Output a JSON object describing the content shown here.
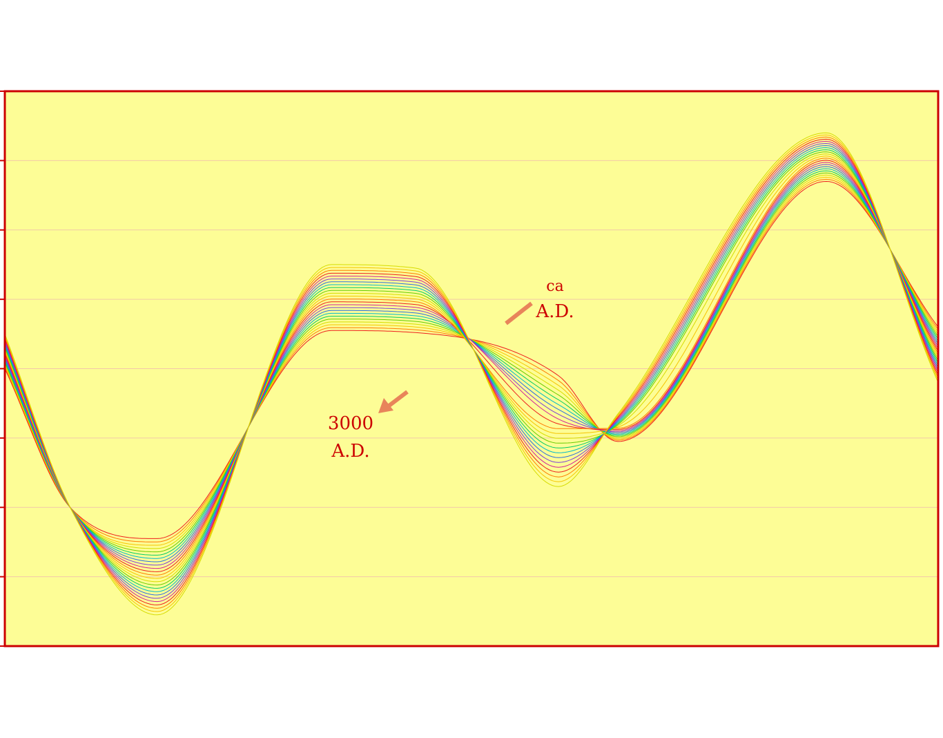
{
  "chart_data": {
    "type": "line",
    "title": "",
    "xlabel": "",
    "ylabel": "",
    "xlim": [
      0,
      1
    ],
    "ylim": [
      0,
      8
    ],
    "grid": "horizontal",
    "y_ticks": [
      0,
      1,
      2,
      3,
      4,
      5,
      6,
      7,
      8
    ],
    "background_color": "#fdfd96",
    "frame_color": "#cc0000",
    "grid_color": "#f2c8a8",
    "arrow_color": "#e8845a",
    "series_count": 24,
    "series_palette": [
      "#ee1c1c",
      "#ff7a00",
      "#f5c400",
      "#d6dc00",
      "#66cc00",
      "#00cc66",
      "#00b8cc",
      "#2a6ee0",
      "#7a3fd8",
      "#d21f9a"
    ],
    "series_note": "24 curves from '3000 A.D.' (innermost) to 'ca A.D.' (outermost)",
    "x": [
      0,
      0.07,
      0.163,
      0.35,
      0.44,
      0.593,
      0.657,
      0.88,
      1
    ],
    "series_first": {
      "values": [
        4.0,
        2.0,
        1.55,
        4.55,
        4.52,
        3.9,
        2.95,
        6.7,
        4.6
      ]
    },
    "series_last": {
      "values": [
        4.5,
        2.0,
        0.45,
        5.5,
        5.45,
        2.3,
        3.35,
        7.4,
        3.8
      ]
    },
    "annotations": [
      {
        "line1": "ca",
        "line2": "A.D."
      },
      {
        "line1": "3000",
        "line2": "A.D."
      }
    ]
  }
}
